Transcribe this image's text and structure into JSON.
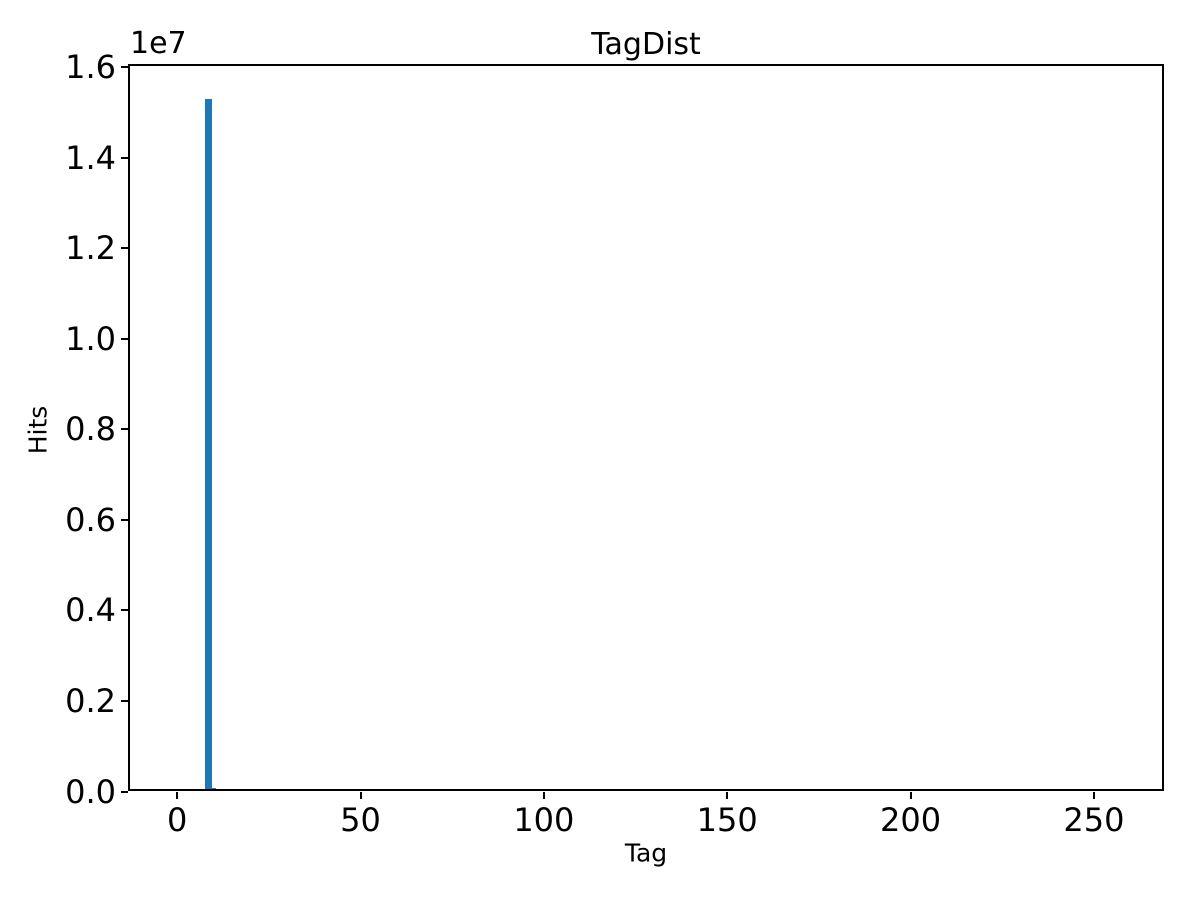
{
  "chart_data": {
    "type": "bar",
    "title": "TagDist",
    "xlabel": "Tag",
    "ylabel": "Hits",
    "offset_text": "1e7",
    "bar_color": "#1f77b4",
    "axis_color": "#000000",
    "background_color": "#ffffff",
    "grid": false,
    "legend": false,
    "xlim": [
      -13.4,
      269.1
    ],
    "ylim": [
      0,
      16065000
    ],
    "x_ticks": [
      {
        "value": 0,
        "label": "0"
      },
      {
        "value": 50,
        "label": "50"
      },
      {
        "value": 100,
        "label": "100"
      },
      {
        "value": 150,
        "label": "150"
      },
      {
        "value": 200,
        "label": "200"
      },
      {
        "value": 250,
        "label": "250"
      }
    ],
    "y_ticks": [
      {
        "value": 0,
        "label": "0.0"
      },
      {
        "value": 2000000,
        "label": "0.2"
      },
      {
        "value": 4000000,
        "label": "0.4"
      },
      {
        "value": 6000000,
        "label": "0.6"
      },
      {
        "value": 8000000,
        "label": "0.8"
      },
      {
        "value": 10000000,
        "label": "1.0"
      },
      {
        "value": 12000000,
        "label": "1.2"
      },
      {
        "value": 14000000,
        "label": "1.4"
      },
      {
        "value": 16000000,
        "label": "1.6"
      }
    ],
    "bars": [
      {
        "tag": 8,
        "hits": 15300000
      },
      {
        "tag": 9,
        "hits": 15300000
      },
      {
        "tag": 10,
        "hits": 80000
      }
    ],
    "bar_width_units": 1.0
  }
}
